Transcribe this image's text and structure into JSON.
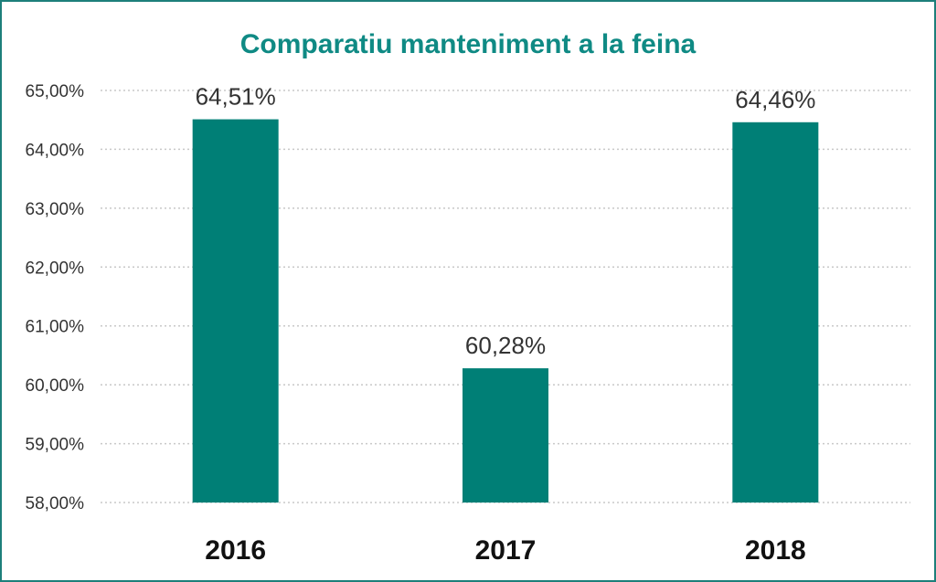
{
  "chart_data": {
    "type": "bar",
    "title": "Comparatiu manteniment a la feina",
    "categories": [
      "2016",
      "2017",
      "2018"
    ],
    "values": [
      64.51,
      60.28,
      64.46
    ],
    "data_labels": [
      "64,51%",
      "60,28%",
      "64,46%"
    ],
    "ylim": [
      58,
      65
    ],
    "yticks": [
      58,
      59,
      60,
      61,
      62,
      63,
      64,
      65
    ],
    "ytick_labels": [
      "58,00%",
      "59,00%",
      "60,00%",
      "61,00%",
      "62,00%",
      "63,00%",
      "64,00%",
      "65,00%"
    ],
    "xlabel": "",
    "ylabel": "",
    "grid": true,
    "legend": "none",
    "bar_color": "#007f76"
  }
}
